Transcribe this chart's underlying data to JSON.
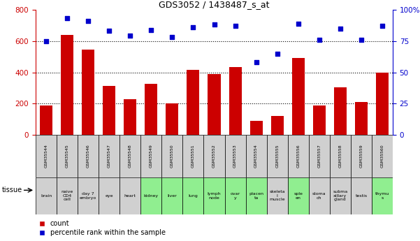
{
  "title": "GDS3052 / 1438487_s_at",
  "categories": [
    "GSM35544",
    "GSM35545",
    "GSM35546",
    "GSM35547",
    "GSM35548",
    "GSM35549",
    "GSM35550",
    "GSM35551",
    "GSM35552",
    "GSM35553",
    "GSM35554",
    "GSM35555",
    "GSM35556",
    "GSM35557",
    "GSM35558",
    "GSM35559",
    "GSM35560"
  ],
  "tissue_labels": [
    "brain",
    "naive\nCD4\ncell",
    "day 7\nembryо",
    "eye",
    "heart",
    "kidney",
    "liver",
    "lung",
    "lymph\nnode",
    "ovar\ny",
    "placen\nta",
    "skeleta\nl\nmuscle",
    "sple\nen",
    "stoma\nch",
    "subma\nxillary\ngland",
    "testis",
    "thymu\ns"
  ],
  "tissue_colors": [
    "#d0d0d0",
    "#d0d0d0",
    "#d0d0d0",
    "#d0d0d0",
    "#d0d0d0",
    "#90ee90",
    "#90ee90",
    "#90ee90",
    "#90ee90",
    "#90ee90",
    "#90ee90",
    "#d0d0d0",
    "#90ee90",
    "#d0d0d0",
    "#d0d0d0",
    "#d0d0d0",
    "#90ee90"
  ],
  "count_values": [
    190,
    640,
    545,
    315,
    230,
    325,
    200,
    415,
    390,
    435,
    90,
    120,
    490,
    190,
    305,
    210,
    400
  ],
  "percentile_values": [
    75,
    93,
    91,
    83,
    79,
    84,
    78,
    86,
    88,
    87,
    58,
    65,
    89,
    76,
    85,
    76,
    87
  ],
  "bar_color": "#cc0000",
  "dot_color": "#0000cc",
  "left_ylim": [
    0,
    800
  ],
  "right_ylim": [
    0,
    100
  ],
  "left_yticks": [
    0,
    200,
    400,
    600,
    800
  ],
  "right_yticks": [
    0,
    25,
    50,
    75,
    100
  ],
  "right_yticklabels": [
    "0",
    "25",
    "50",
    "75",
    "100%"
  ],
  "grid_values": [
    200,
    400,
    600
  ],
  "bar_width": 0.6,
  "gsm_row_color": "#d0d0d0",
  "legend_labels": [
    "count",
    "percentile rank within the sample"
  ]
}
